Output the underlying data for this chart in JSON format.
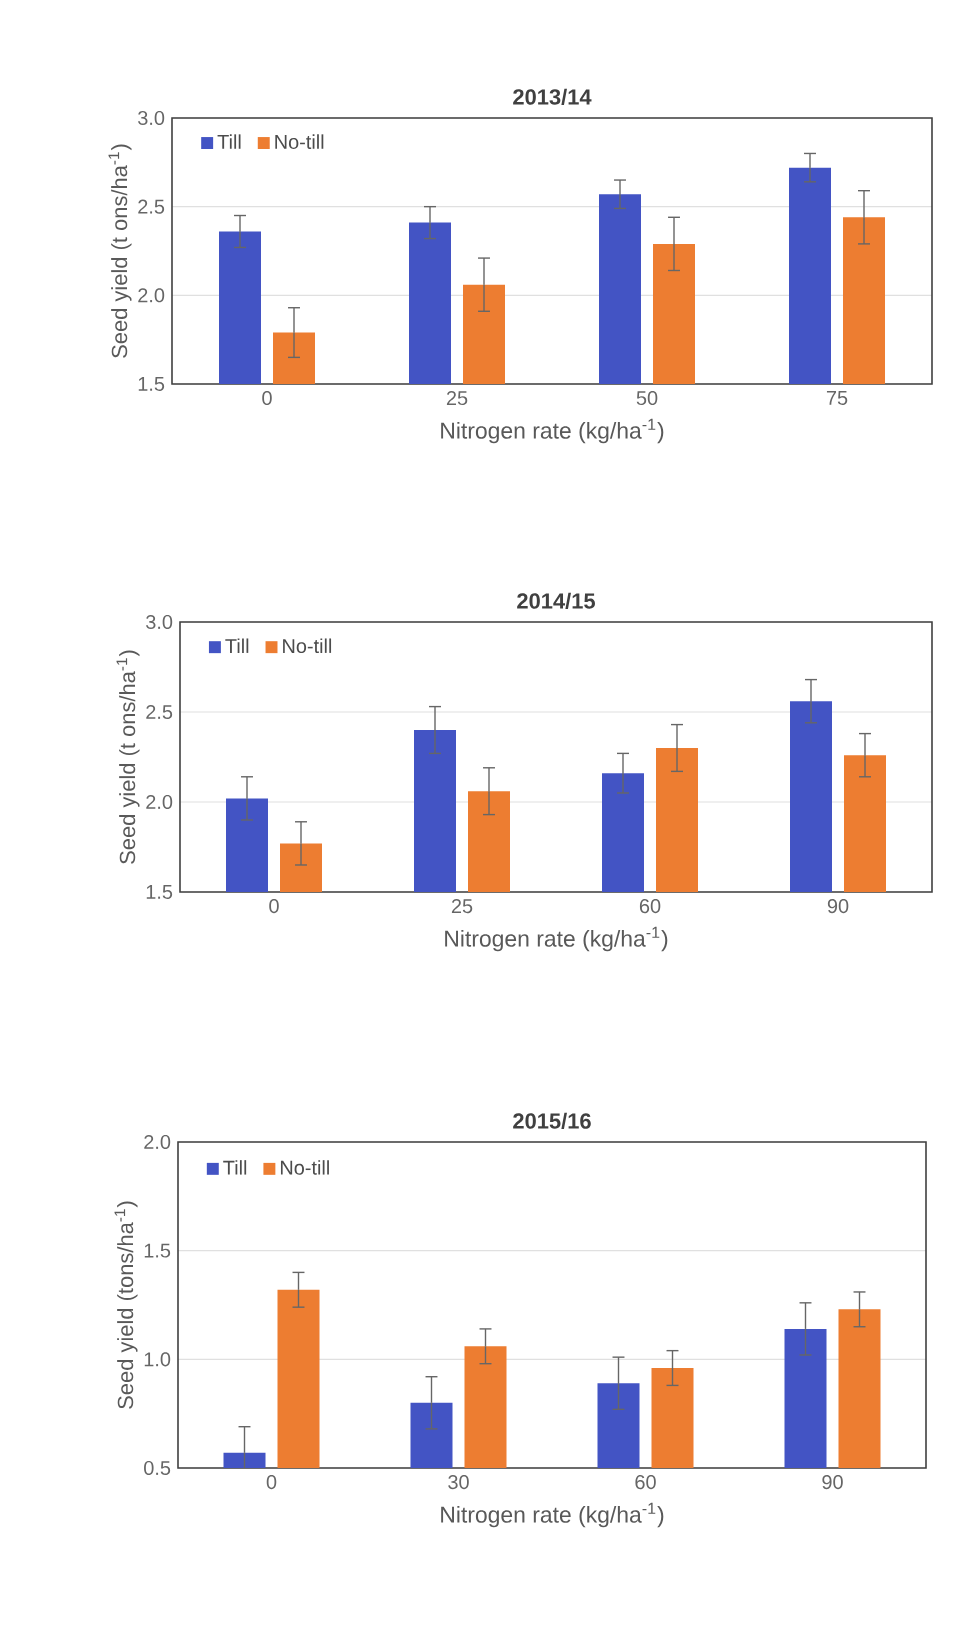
{
  "chart_data": [
    {
      "type": "bar",
      "title": "2013/14",
      "xlabel": "Nitrogen rate (kg/ha$^{-1}$)",
      "ylabel": "Seed yield (t ons/ha$^{-1}$)",
      "categories": [
        "0",
        "25",
        "50",
        "75"
      ],
      "series": [
        {
          "name": "Till",
          "color": "#4354c4",
          "values": [
            2.36,
            2.41,
            2.57,
            2.72
          ],
          "errors": [
            0.09,
            0.09,
            0.08,
            0.08
          ]
        },
        {
          "name": "No-till",
          "color": "#ed7d31",
          "values": [
            1.79,
            2.06,
            2.29,
            2.44
          ],
          "errors": [
            0.14,
            0.15,
            0.15,
            0.15
          ]
        }
      ],
      "ylim": [
        1.5,
        3.0
      ],
      "yticks": [
        1.5,
        {
          "value": 2,
          "label": "2.0"
        },
        2.5,
        {
          "value": 3,
          "label": "3.0"
        }
      ],
      "grid": "y",
      "legend": "top left"
    },
    {
      "type": "bar",
      "title": "2014/15",
      "xlabel": "Nitrogen rate (kg/ha$^{-1}$)",
      "ylabel": "Seed yield (t ons/ha$^{-1}$)",
      "categories": [
        "0",
        "25",
        "60",
        "90"
      ],
      "series": [
        {
          "name": "Till",
          "color": "#4354c4",
          "values": [
            2.02,
            2.4,
            2.16,
            2.56
          ],
          "errors": [
            0.12,
            0.13,
            0.11,
            0.12
          ]
        },
        {
          "name": "No-till",
          "color": "#ed7d31",
          "values": [
            1.77,
            2.06,
            2.3,
            2.26
          ],
          "errors": [
            0.12,
            0.13,
            0.13,
            0.12
          ]
        }
      ],
      "ylim": [
        1.5,
        3.0
      ],
      "yticks": [
        1.5,
        {
          "value": 2,
          "label": "2.0"
        },
        2.5,
        {
          "value": 3,
          "label": "3.0"
        }
      ],
      "grid": "y",
      "legend": "top left"
    },
    {
      "type": "bar",
      "title": "2015/16",
      "xlabel": "Nitrogen rate (kg/ha$^{-1}$)",
      "ylabel": "Seed yield (tons/ha$^{-1}$)",
      "categories": [
        "0",
        "30",
        "60",
        "90"
      ],
      "series": [
        {
          "name": "Till",
          "color": "#4354c4",
          "values": [
            0.57,
            0.8,
            0.89,
            1.14
          ],
          "errors": [
            0.12,
            0.12,
            0.12,
            0.12
          ]
        },
        {
          "name": "No-till",
          "color": "#ed7d31",
          "values": [
            1.32,
            1.06,
            0.96,
            1.23
          ],
          "errors": [
            0.08,
            0.08,
            0.08,
            0.08
          ]
        }
      ],
      "ylim": [
        0.5,
        2.0
      ],
      "yticks": [
        0.5,
        {
          "value": 1,
          "label": "1.0"
        },
        1.5,
        {
          "value": 2,
          "label": "2.0"
        }
      ],
      "grid": "y",
      "legend": "top left"
    }
  ]
}
